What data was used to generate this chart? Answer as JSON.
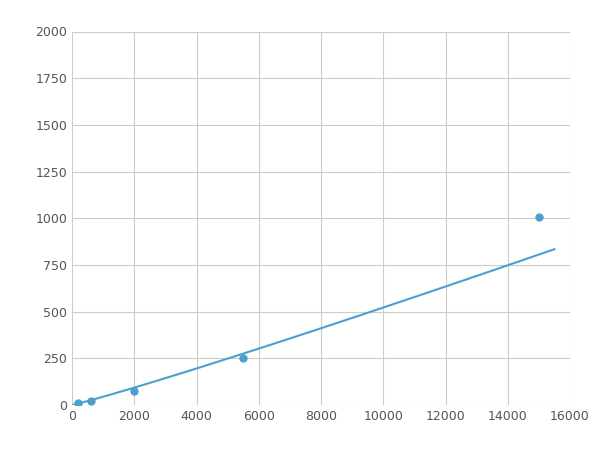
{
  "x": [
    200,
    600,
    2000,
    5500,
    15000
  ],
  "y": [
    10,
    22,
    75,
    252,
    1005
  ],
  "line_color": "#4d9fcd",
  "marker_color": "#4d9fcd",
  "marker_size": 5,
  "xlim": [
    0,
    16000
  ],
  "ylim": [
    0,
    2000
  ],
  "xticks": [
    0,
    2000,
    4000,
    6000,
    8000,
    10000,
    12000,
    14000,
    16000
  ],
  "yticks": [
    0,
    250,
    500,
    750,
    1000,
    1250,
    1500,
    1750,
    2000
  ],
  "grid": true,
  "background_color": "#ffffff",
  "grid_color": "#cccccc",
  "linewidth": 1.5,
  "figure_width": 6.0,
  "figure_height": 4.5,
  "dpi": 100
}
